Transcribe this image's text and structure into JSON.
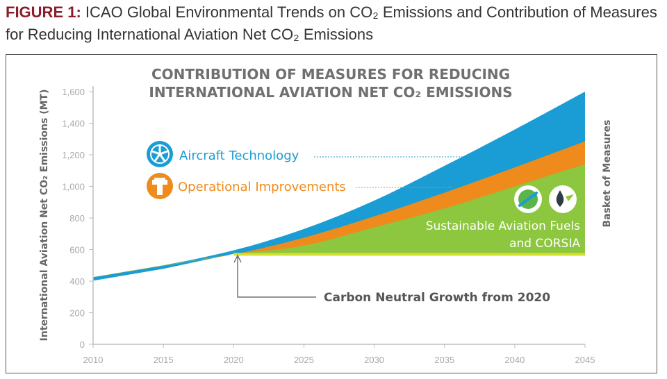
{
  "figure": {
    "label": "FIGURE 1:",
    "caption": "ICAO Global Environmental Trends on CO₂ Emissions and Contribution of Measures for Reducing International Aviation Net CO₂ Emissions"
  },
  "chart_data": {
    "type": "area",
    "title_line1": "CONTRIBUTION OF MEASURES FOR REDUCING",
    "title_line2": "INTERNATIONAL AVIATION NET CO₂ EMISSIONS",
    "ylabel": "International Aviation Net CO₂ Emissions (MT)",
    "right_label": "Basket of Measures",
    "x_ticks": [
      "2010",
      "2015",
      "2020",
      "2025",
      "2030",
      "2035",
      "2040",
      "2045"
    ],
    "y_ticks": [
      "0",
      "200",
      "400",
      "600",
      "800",
      "1,000",
      "1,200",
      "1,400",
      "1,600"
    ],
    "xlim": [
      2010,
      2045
    ],
    "ylim": [
      0,
      1600
    ],
    "x": [
      2010,
      2015,
      2020,
      2025,
      2030,
      2035,
      2040,
      2045
    ],
    "series": [
      {
        "name": "Aircraft Technology",
        "color": "#1a9dd4",
        "top": [
          425,
          500,
          595,
          730,
          910,
          1130,
          1360,
          1600
        ]
      },
      {
        "name": "Operational Improvements",
        "color": "#ee8b1c",
        "top": [
          425,
          500,
          570,
          675,
          810,
          960,
          1120,
          1285
        ]
      },
      {
        "name": "Sustainable Aviation Fuels and CORSIA",
        "color": "#8dc63f",
        "top": [
          425,
          500,
          570,
          625,
          740,
          860,
          1000,
          1140
        ]
      }
    ],
    "baseline": {
      "label": "Carbon Neutral Growth from 2020",
      "value": 570,
      "start": 2020,
      "color": "#d4e12a"
    },
    "legend": {
      "aircraft": "Aircraft Technology",
      "operational": "Operational Improvements",
      "saf_line1": "Sustainable Aviation Fuels",
      "saf_line2": "and CORSIA"
    },
    "colors": {
      "aircraft": "#1a9dd4",
      "operational": "#ee8b1c",
      "saf": "#8dc63f",
      "baseline": "#d4e12a"
    }
  }
}
